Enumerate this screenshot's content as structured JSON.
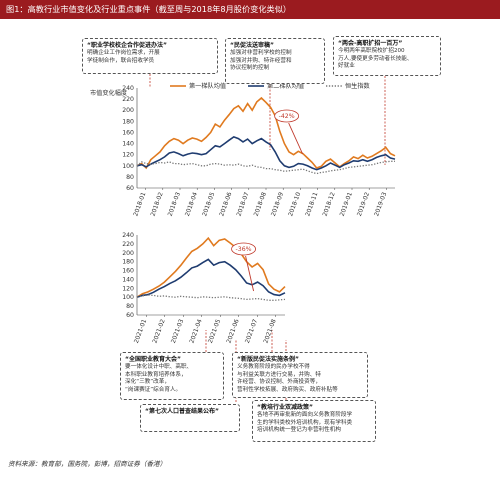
{
  "header": {
    "title": "图1：高教行业市值变化及行业重点事件（截至周与2018年8月股价变化类似）"
  },
  "notes": [
    {
      "title": "“职业学校校企合作促进办法”",
      "body": "明确企业工作岗位需求，开展\n学徒制合作，联合招收学员"
    },
    {
      "title": "“民促法送审稿”",
      "body": "加强对非营利学校的控制\n加强对并购、特许经营和\n协议控制的控制"
    },
    {
      "title": "“两会-高职扩招一百万”",
      "body": "今明两年高职院校扩招200\n万人,要使更多劳动者长技能、\n好就业"
    },
    {
      "title": "“全国职业教育大会”",
      "body": "要一体化设计中职、高职、\n本科职业教育培养体系，\n深化“三教”改革，\n“岗课赛证”综合育人。"
    },
    {
      "title": "“新版民促法实施条例”",
      "body": "义务教育阶段的民办学校不得\n与利益关联方进行交易，并购、特\n许经营、协议控制、外商投资等，\n营利性学校拓展、政府购买、政府补贴等"
    },
    {
      "title": "“第七次人口普查结果公布”",
      "body": ""
    },
    {
      "title": "“教培行业双减政策”",
      "body": "各地不再审批新的面向义务教育阶段学\n生的学科类校外培训机构，现有学科类\n培训机构统一登记为非营利性机构"
    }
  ],
  "source": "资料来源：教育部，国务院，彭博，招商证券（香港）",
  "chart_data": [
    {
      "type": "line",
      "ylabel": "市值变化幅度",
      "ylim": [
        60,
        240
      ],
      "yticks": [
        60,
        80,
        100,
        120,
        140,
        160,
        180,
        200,
        220,
        240
      ],
      "xticks": [
        "2018-01",
        "2018-02",
        "2018-03",
        "2018-04",
        "2018-05",
        "2018-06",
        "2018-07",
        "2018-08",
        "2018-09",
        "2018-10",
        "2018-11",
        "2018-12",
        "2019-01",
        "2019-02",
        "2019-03"
      ],
      "annotation": "-42%",
      "legend": "top",
      "series": [
        {
          "name": "第一梯队均值",
          "color": "#e07a1f",
          "style": "solid",
          "values": [
            100,
            104,
            96,
            111,
            118,
            125,
            136,
            144,
            149,
            146,
            140,
            146,
            150,
            148,
            144,
            151,
            160,
            175,
            170,
            182,
            192,
            203,
            208,
            198,
            212,
            200,
            215,
            222,
            214,
            205,
            190,
            162,
            140,
            125,
            120,
            126,
            122,
            114,
            106,
            96,
            99,
            108,
            112,
            105,
            98,
            104,
            109,
            116,
            113,
            119,
            114,
            117,
            122,
            127,
            133,
            122,
            118
          ]
        },
        {
          "name": "第二梯队均值",
          "color": "#1f3c70",
          "style": "solid",
          "values": [
            100,
            102,
            98,
            103,
            107,
            111,
            116,
            123,
            125,
            122,
            118,
            121,
            123,
            122,
            120,
            122,
            129,
            136,
            134,
            140,
            146,
            152,
            149,
            143,
            148,
            140,
            145,
            149,
            143,
            138,
            125,
            109,
            100,
            97,
            99,
            104,
            103,
            100,
            96,
            93,
            96,
            100,
            105,
            101,
            97,
            102,
            105,
            109,
            108,
            111,
            108,
            111,
            115,
            118,
            120,
            114,
            112
          ]
        },
        {
          "name": "恒生指数",
          "color": "#777777",
          "style": "dotted",
          "values": [
            100,
            107,
            104,
            103,
            104,
            106,
            105,
            107,
            104,
            104,
            102,
            103,
            104,
            102,
            100,
            100,
            103,
            104,
            103,
            101,
            102,
            101,
            103,
            100,
            99,
            101,
            98,
            97,
            95,
            95,
            93,
            92,
            90,
            91,
            92,
            93,
            94,
            91,
            88,
            86,
            88,
            89,
            91,
            92,
            93,
            95,
            97,
            98,
            99,
            100,
            101,
            102,
            104,
            106,
            107,
            108,
            108
          ]
        }
      ]
    },
    {
      "type": "line",
      "ylim": [
        60,
        240
      ],
      "yticks": [
        60,
        80,
        100,
        120,
        140,
        160,
        180,
        200,
        220,
        240
      ],
      "xticks": [
        "2021-01",
        "2021-02",
        "2021-03",
        "2021-04",
        "2021-05",
        "2021-06",
        "2021-07",
        "2021-08"
      ],
      "annotation": "-36%",
      "series": [
        {
          "name": "第一梯队均值",
          "color": "#e07a1f",
          "style": "solid",
          "values": [
            100,
            108,
            112,
            118,
            125,
            134,
            146,
            158,
            172,
            188,
            203,
            210,
            220,
            233,
            216,
            228,
            231,
            222,
            212,
            198,
            180,
            168,
            176,
            162,
            130,
            118,
            112,
            124
          ]
        },
        {
          "name": "第二梯队均值",
          "color": "#1f3c70",
          "style": "solid",
          "values": [
            100,
            104,
            106,
            111,
            118,
            124,
            131,
            137,
            145,
            155,
            166,
            170,
            178,
            185,
            172,
            178,
            180,
            172,
            162,
            148,
            132,
            128,
            134,
            126,
            112,
            106,
            104,
            110
          ]
        },
        {
          "name": "恒生指数",
          "color": "#777777",
          "style": "dotted",
          "values": [
            100,
            103,
            105,
            104,
            102,
            103,
            101,
            100,
            102,
            101,
            100,
            99,
            101,
            100,
            99,
            100,
            101,
            99,
            98,
            97,
            95,
            96,
            97,
            95,
            93,
            93,
            94,
            95
          ]
        }
      ]
    }
  ]
}
